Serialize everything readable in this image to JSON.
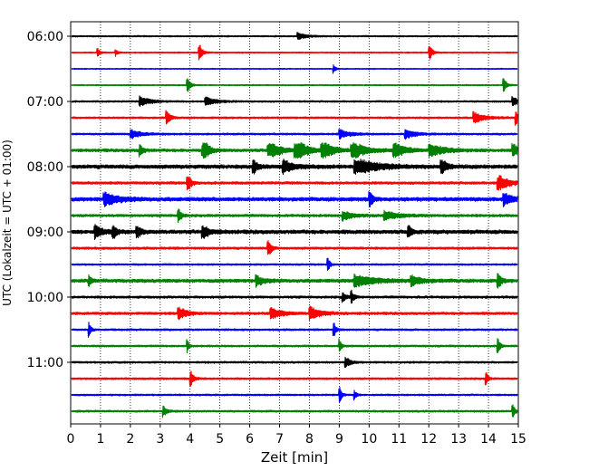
{
  "chart_data": {
    "type": "line",
    "subtype": "helicorder",
    "xlabel": "Zeit  [min]",
    "ylabel": "UTC (Lokalzeit = UTC + 01:00)",
    "xlim": [
      0,
      15
    ],
    "x_ticks": [
      "0",
      "1",
      "2",
      "3",
      "4",
      "5",
      "6",
      "7",
      "8",
      "9",
      "10",
      "11",
      "12",
      "13",
      "14",
      "15"
    ],
    "y_tick_labels": [
      "06:00",
      "07:00",
      "08:00",
      "09:00",
      "10:00",
      "11:00"
    ],
    "trace_start_times": [
      "06:00",
      "06:15",
      "06:30",
      "06:45",
      "07:00",
      "07:15",
      "07:30",
      "07:45",
      "08:00",
      "08:15",
      "08:30",
      "08:45",
      "09:00",
      "09:15",
      "09:30",
      "09:45",
      "10:00",
      "10:15",
      "10:30",
      "10:45",
      "11:00",
      "11:15",
      "11:30",
      "11:45"
    ],
    "trace_colors": [
      "#000000",
      "#ff0000",
      "#0000ff",
      "#008000"
    ],
    "grid": "vertical-dotted",
    "traces": [
      {
        "noise": 0.35,
        "events": [
          [
            7.6,
            1.5,
            0.25
          ]
        ]
      },
      {
        "noise": 0.3,
        "events": [
          [
            0.9,
            2.0,
            0.06
          ],
          [
            1.5,
            1.5,
            0.06
          ],
          [
            4.3,
            5.0,
            0.08
          ],
          [
            12.0,
            5.0,
            0.08
          ]
        ]
      },
      {
        "noise": 0.25,
        "events": [
          [
            8.8,
            2.0,
            0.06
          ]
        ]
      },
      {
        "noise": 0.3,
        "events": [
          [
            3.9,
            4.0,
            0.08
          ],
          [
            14.5,
            4.0,
            0.08
          ]
        ]
      },
      {
        "noise": 0.4,
        "events": [
          [
            2.3,
            2.2,
            0.3
          ],
          [
            4.5,
            2.0,
            0.3
          ],
          [
            14.8,
            2.0,
            0.2
          ]
        ]
      },
      {
        "noise": 0.45,
        "events": [
          [
            3.2,
            4.0,
            0.1
          ],
          [
            13.5,
            2.5,
            0.3
          ],
          [
            14.9,
            4.0,
            0.08
          ]
        ]
      },
      {
        "noise": 0.45,
        "events": [
          [
            2.0,
            2.0,
            0.3
          ],
          [
            9.0,
            2.0,
            0.3
          ],
          [
            11.2,
            2.0,
            0.3
          ]
        ]
      },
      {
        "noise": 0.7,
        "events": [
          [
            2.3,
            3.0,
            0.1
          ],
          [
            4.4,
            8.0,
            0.15
          ],
          [
            6.6,
            5.0,
            0.3
          ],
          [
            7.5,
            6.0,
            0.3
          ],
          [
            8.4,
            4.5,
            0.3
          ],
          [
            9.4,
            4.0,
            0.4
          ],
          [
            10.8,
            4.0,
            0.3
          ],
          [
            12.0,
            3.0,
            0.4
          ],
          [
            14.8,
            3.0,
            0.2
          ]
        ]
      },
      {
        "noise": 0.9,
        "events": [
          [
            6.1,
            4.5,
            0.1
          ],
          [
            7.1,
            3.0,
            0.3
          ],
          [
            9.5,
            4.0,
            0.6
          ],
          [
            12.4,
            4.0,
            0.15
          ]
        ]
      },
      {
        "noise": 0.6,
        "events": [
          [
            3.9,
            5.0,
            0.1
          ],
          [
            14.3,
            4.0,
            0.3
          ]
        ]
      },
      {
        "noise": 0.9,
        "events": [
          [
            1.1,
            3.0,
            0.4
          ],
          [
            10.0,
            4.0,
            0.1
          ],
          [
            14.5,
            2.5,
            0.3
          ]
        ]
      },
      {
        "noise": 0.6,
        "events": [
          [
            3.6,
            4.0,
            0.08
          ],
          [
            9.1,
            2.0,
            0.3
          ],
          [
            10.5,
            2.0,
            0.4
          ]
        ]
      },
      {
        "noise": 0.9,
        "events": [
          [
            0.8,
            3.0,
            0.2
          ],
          [
            1.4,
            4.0,
            0.1
          ],
          [
            2.2,
            4.0,
            0.1
          ],
          [
            4.4,
            3.0,
            0.2
          ],
          [
            11.3,
            5.0,
            0.08
          ]
        ]
      },
      {
        "noise": 0.55,
        "events": [
          [
            6.6,
            6.0,
            0.08
          ],
          [
            15.0,
            5.0,
            0.06
          ]
        ]
      },
      {
        "noise": 0.4,
        "events": [
          [
            8.6,
            4.5,
            0.06
          ]
        ]
      },
      {
        "noise": 0.8,
        "events": [
          [
            0.6,
            4.0,
            0.06
          ],
          [
            6.2,
            2.5,
            0.2
          ],
          [
            9.5,
            2.5,
            0.6
          ],
          [
            11.4,
            2.0,
            0.3
          ],
          [
            14.3,
            6.0,
            0.08
          ]
        ]
      },
      {
        "noise": 0.55,
        "events": [
          [
            9.1,
            3.0,
            0.08
          ],
          [
            9.4,
            3.0,
            0.08
          ]
        ]
      },
      {
        "noise": 0.6,
        "events": [
          [
            3.6,
            3.5,
            0.2
          ],
          [
            6.7,
            2.5,
            0.3
          ],
          [
            8.0,
            3.0,
            0.3
          ]
        ]
      },
      {
        "noise": 0.45,
        "events": [
          [
            0.6,
            4.0,
            0.06
          ],
          [
            8.8,
            5.0,
            0.06
          ]
        ]
      },
      {
        "noise": 0.45,
        "events": [
          [
            3.9,
            3.0,
            0.06
          ],
          [
            9.0,
            3.0,
            0.06
          ],
          [
            14.3,
            5.0,
            0.06
          ]
        ]
      },
      {
        "noise": 0.45,
        "events": [
          [
            9.2,
            3.0,
            0.12
          ]
        ]
      },
      {
        "noise": 0.45,
        "events": [
          [
            4.0,
            5.0,
            0.08
          ],
          [
            13.9,
            4.0,
            0.06
          ]
        ]
      },
      {
        "noise": 0.4,
        "events": [
          [
            9.0,
            5.0,
            0.06
          ],
          [
            9.5,
            2.5,
            0.06
          ]
        ]
      },
      {
        "noise": 0.45,
        "events": [
          [
            3.1,
            2.5,
            0.1
          ],
          [
            14.8,
            4.0,
            0.06
          ]
        ]
      }
    ]
  }
}
